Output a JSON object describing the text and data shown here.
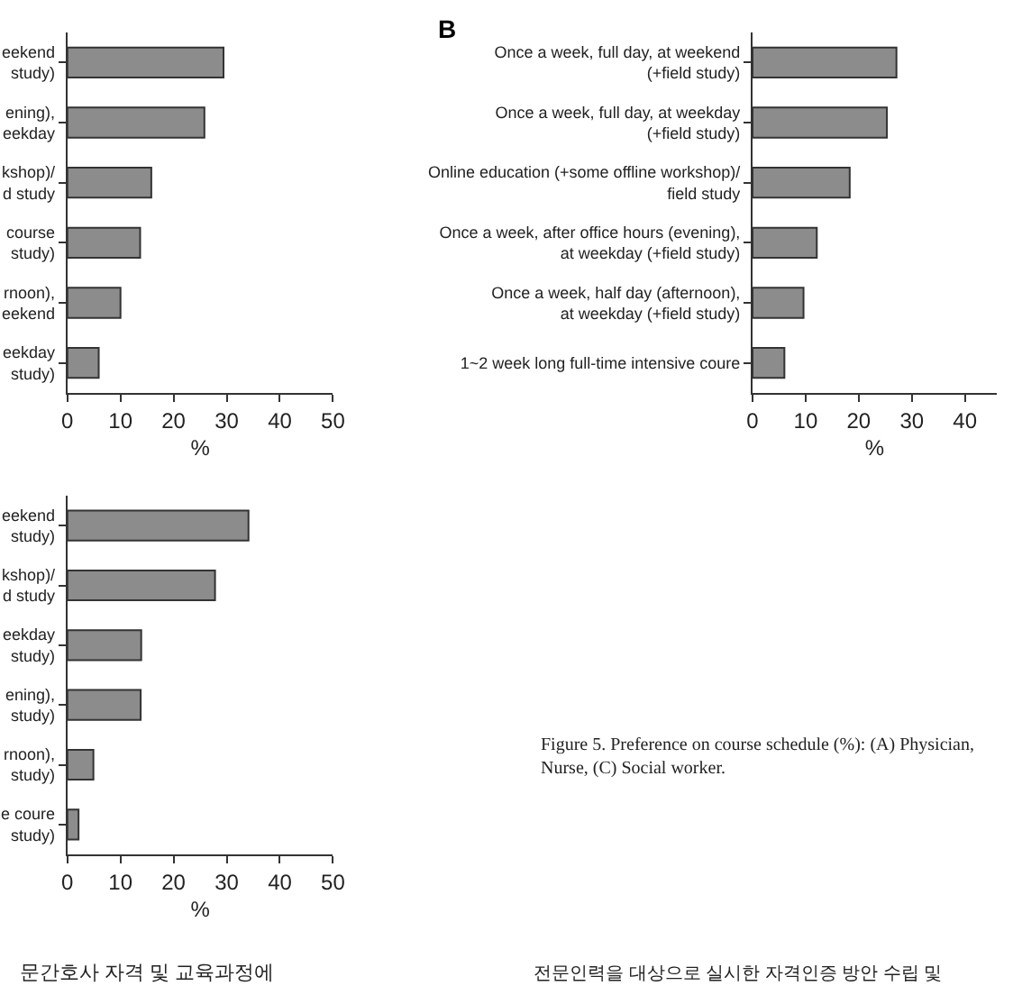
{
  "chart_data": [
    {
      "type": "bar",
      "orientation": "horizontal",
      "categories": [
        "eekend\nstudy)",
        "ening),\neekday",
        "kshop)/\nd study",
        "course\nstudy)",
        "rnoon),\neekend",
        "eekday\nstudy)"
      ],
      "values": [
        29.4,
        25.8,
        15.8,
        13.7,
        10,
        5.9
      ],
      "color": "#8c8c8c",
      "xlabel": "%",
      "xlim": [
        0,
        50
      ],
      "xticks": [
        0,
        10,
        20,
        30,
        40,
        50
      ]
    },
    {
      "type": "bar",
      "orientation": "horizontal",
      "title": "B",
      "categories": [
        "Once a week, full day, at weekend\n(+field study)",
        "Once a week, full day, at weekday\n(+field study)",
        "Online education (+some offline workshop)/\nfield study",
        "Once a week, after office hours (evening),\nat weekday (+field study)",
        "Once a week, half day (afternoon),\nat weekday (+field study)",
        "1~2 week long full-time intensive coure"
      ],
      "values": [
        27.1,
        25.3,
        18.3,
        12.1,
        9.6,
        6
      ],
      "color": "#8c8c8c",
      "xlabel": "%",
      "xlim": [
        0,
        46
      ],
      "xticks": [
        0,
        10,
        20,
        30,
        40
      ],
      "annotations": [
        "Figure 5. Preference on course schedule (%): (A) Physician,\nNurse, (C) Social worker.",
        "문간호사 자격 및 교육과정에",
        "전문인력을 대상으로 실시한 자격인증 방안 수립 및"
      ]
    },
    {
      "type": "bar",
      "orientation": "horizontal",
      "categories": [
        "eekend\nstudy)",
        "kshop)/\nd study",
        "eekday\nstudy)",
        "ening),\nstudy)",
        "rnoon),\nstudy)",
        "e coure\nstudy)"
      ],
      "values": [
        34.1,
        27.8,
        13.9,
        13.8,
        4.9,
        2.1
      ],
      "color": "#8c8c8c",
      "xlabel": "%",
      "xlim": [
        0,
        50
      ],
      "xticks": [
        0,
        10,
        20,
        30,
        40,
        50
      ]
    }
  ]
}
